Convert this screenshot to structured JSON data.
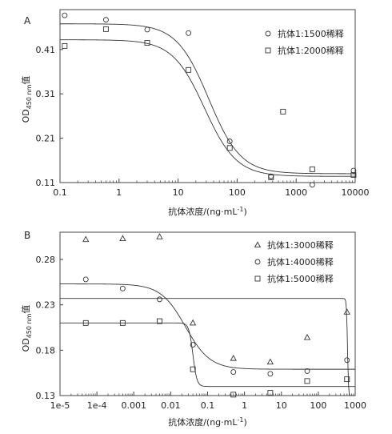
{
  "chart_data": [
    {
      "panel_label": "A",
      "type": "scatter",
      "x_scale": "log",
      "xlim": [
        0.1,
        10000
      ],
      "ylim": [
        0.11,
        0.5
      ],
      "xticks": [
        0.1,
        1,
        10,
        100,
        1000,
        10000
      ],
      "xtick_labels": [
        "0.1",
        "1",
        "10",
        "100",
        "1000",
        "10000"
      ],
      "yticks": [
        0.11,
        0.21,
        0.31,
        0.41
      ],
      "ytick_labels": [
        "0.11",
        "0.21",
        "0.31",
        "0.41"
      ],
      "xlabel": "抗体浓度/(ng·mL",
      "xlabel_sup": "-1",
      "xlabel_end": ")",
      "ylabel": "OD",
      "ylabel_sub": "450 nm",
      "ylabel_end": "值",
      "legend_position": "top-right",
      "series": [
        {
          "name": "抗体1:1500稀释",
          "marker": "circle",
          "x": [
            0.12,
            0.6,
            3,
            15,
            75,
            375,
            1875,
            9375
          ],
          "y": [
            0.487,
            0.477,
            0.455,
            0.447,
            0.203,
            0.124,
            0.105,
            0.137
          ],
          "curve": {
            "top": 0.468,
            "bottom": 0.13,
            "ec50": 33,
            "hill": 1.6
          }
        },
        {
          "name": "抗体1:2000稀释",
          "marker": "square",
          "x": [
            0.12,
            0.6,
            3,
            15,
            75,
            375,
            600,
            1875,
            9375
          ],
          "y": [
            0.418,
            0.456,
            0.425,
            0.364,
            0.188,
            0.122,
            0.27,
            0.14,
            0.127
          ],
          "curve": {
            "top": 0.432,
            "bottom": 0.124,
            "ec50": 28,
            "hill": 1.6
          }
        }
      ]
    },
    {
      "panel_label": "B",
      "type": "scatter",
      "x_scale": "log",
      "xlim": [
        1e-05,
        1000
      ],
      "ylim": [
        0.13,
        0.31
      ],
      "xticks": [
        1e-05,
        0.0001,
        0.001,
        0.01,
        0.1,
        1,
        10,
        100,
        1000
      ],
      "xtick_labels": [
        "1e-5",
        "1e-4",
        "0.001",
        "0.01",
        "0.1",
        "1",
        "10",
        "100",
        "1000"
      ],
      "yticks": [
        0.13,
        0.18,
        0.23,
        0.28
      ],
      "ytick_labels": [
        "0.13",
        "0.18",
        "0.23",
        "0.28"
      ],
      "xlabel": "抗体浓度/(ng·mL",
      "xlabel_sup": "-1",
      "xlabel_end": ")",
      "ylabel": "OD",
      "ylabel_sub": "450 nm",
      "ylabel_end": "值",
      "legend_position": "top-right",
      "series": [
        {
          "name": "抗体1:3000稀释",
          "marker": "triangle",
          "x": [
            5e-05,
            0.0005,
            0.005,
            0.04,
            0.5,
            5,
            50,
            600
          ],
          "y": [
            0.302,
            0.303,
            0.305,
            0.21,
            0.171,
            0.167,
            0.194,
            0.222
          ],
          "curve": {
            "top": 0.237,
            "bottom": 0.127,
            "ec50": 620,
            "hill": 30
          }
        },
        {
          "name": "抗体1:4000稀释",
          "marker": "circle",
          "x": [
            5e-05,
            0.0005,
            0.005,
            0.04,
            0.5,
            5,
            50,
            600
          ],
          "y": [
            0.258,
            0.248,
            0.236,
            0.186,
            0.156,
            0.154,
            0.157,
            0.169
          ],
          "curve": {
            "top": 0.253,
            "bottom": 0.159,
            "ec50": 0.025,
            "hill": 1.3
          }
        },
        {
          "name": "抗体1:5000稀释",
          "marker": "square",
          "x": [
            5e-05,
            0.0005,
            0.005,
            0.04,
            0.5,
            5,
            50,
            600
          ],
          "y": [
            0.21,
            0.21,
            0.212,
            0.159,
            0.131,
            0.133,
            0.146,
            0.148
          ],
          "curve": {
            "top": 0.21,
            "bottom": 0.14,
            "ec50": 0.04,
            "hill": 8
          }
        }
      ]
    }
  ]
}
